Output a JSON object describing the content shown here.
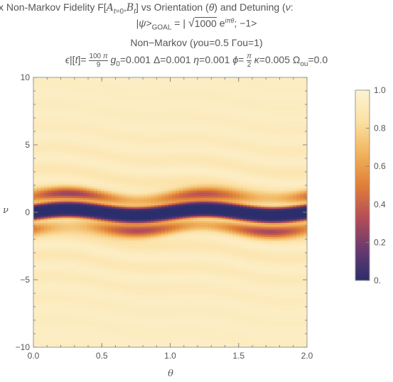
{
  "chart_data": {
    "type": "heatmap",
    "title_lines": [
      "x Non-Markov Fidelity F[A_{t=0},B_t] vs Orientation (θ) and Detuning (ν",
      "|ψ>GOAL = | √1000 e^{iπθ}; −1>",
      "Non−Markov (γou=0.5 Γou=1)",
      "ϵ|[t]= 100π/9  g0=0.001 Δ=0.001 η=0.001 ϕ= π/2  κ=0.005 Ωou=0.0"
    ],
    "xlabel": "θ",
    "ylabel": "ν",
    "xlim": [
      0.0,
      2.0
    ],
    "ylim": [
      -10,
      10
    ],
    "x_ticks": [
      "0.0",
      "0.5",
      "1.0",
      "1.5",
      "2.0"
    ],
    "x_tick_values": [
      0.0,
      0.5,
      1.0,
      1.5,
      2.0
    ],
    "y_ticks": [
      "−10",
      "−5",
      "0",
      "5",
      "10"
    ],
    "y_tick_values": [
      -10,
      -5,
      0,
      5,
      10
    ],
    "colorbar": {
      "range": [
        0,
        1
      ],
      "ticks": [
        "0.",
        "0.2",
        "0.4",
        "0.6",
        "0.8",
        "1.0"
      ],
      "tick_values": [
        0,
        0.2,
        0.4,
        0.6,
        0.8,
        1.0
      ],
      "colors": [
        "#2b2e6c",
        "#6a3a6e",
        "#b64e57",
        "#e07f38",
        "#f1b35c",
        "#fbe0a3",
        "#fdf3d2"
      ]
    },
    "features": {
      "valley_center_nu": 0.0,
      "valley_wave_amplitude": 0.22,
      "valley_wave_period_theta": 1.0,
      "valley_half_width_nu": 0.6,
      "orange_band_nu": [
        1.1,
        -1.2
      ],
      "min_fidelity": 0.0,
      "background_fidelity": 0.95
    }
  }
}
